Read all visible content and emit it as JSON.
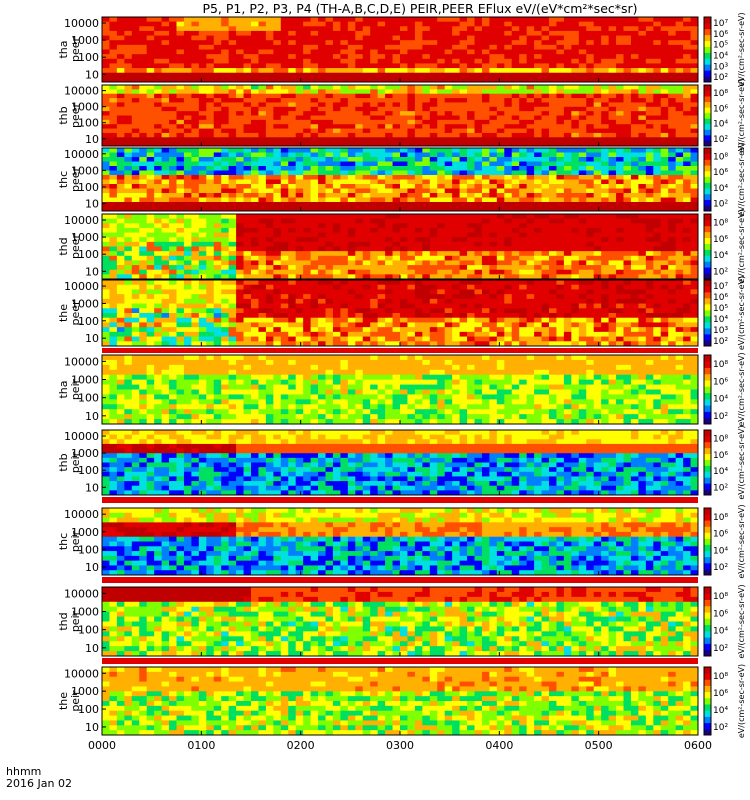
{
  "title": "P5, P1, P2, P3, P4 (TH-A,B,C,D,E) PEIR,PEER EFlux eV/(eV*cm²*sec*sr)",
  "colors": {
    "colormap": [
      "#1a0080",
      "#0000ff",
      "#0080ff",
      "#00e0e0",
      "#00e060",
      "#80ff00",
      "#ffff00",
      "#ffb000",
      "#ff5000",
      "#e00000",
      "#c00000"
    ],
    "frame": "#000000",
    "flag_red": "#e00000",
    "flag_white": "#ffffff",
    "flag_black": "#000000",
    "gap_dark": "#000080"
  },
  "chart_data": {
    "type": "heatmap",
    "title": "P5, P1, P2, P3, P4 (TH-A,B,C,D,E) PEIR,PEER EFlux eV/(eV*cm²*sec*sr)",
    "x_ticks": [
      "0000",
      "0100",
      "0200",
      "0300",
      "0400",
      "0500",
      "0600"
    ],
    "x_label_line1": "hhmm",
    "x_label_line2": "2016 Jan 02",
    "x_range_hhmm": [
      "0000",
      "0600"
    ],
    "y_scale": "log",
    "y_ticks": [
      "10",
      "100",
      "1000",
      "10000"
    ],
    "colorbar_scale": "log",
    "panels": [
      {
        "label1": "tha",
        "label2": "peer",
        "colorbar_ticks": [
          "10²",
          "10³",
          "10⁴",
          "10⁵",
          "10⁶",
          "10⁷"
        ],
        "colorbar_label": "eV/(cm²-sec-sr-eV)"
      },
      {
        "label1": "thb",
        "label2": "peer",
        "colorbar_ticks": [
          "10²",
          "10⁴",
          "10⁶",
          "10⁸"
        ],
        "colorbar_label": "eV/(cm²-sec-sr-eV)"
      },
      {
        "label1": "thc",
        "label2": "peer",
        "colorbar_ticks": [
          "10²",
          "10⁴",
          "10⁶",
          "10⁸"
        ],
        "colorbar_label": "eV/(cm²-sec-sr-eV)"
      },
      {
        "label1": "thd",
        "label2": "peer",
        "colorbar_ticks": [
          "10²",
          "10⁴",
          "10⁶",
          "10⁸"
        ],
        "colorbar_label": "eV/(cm²-sec-sr-eV)"
      },
      {
        "label1": "the",
        "label2": "peer",
        "colorbar_ticks": [
          "10²",
          "10³",
          "10⁴",
          "10⁵",
          "10⁶",
          "10⁷"
        ],
        "colorbar_label": "eV/(cm²-sec-sr-eV)"
      },
      {
        "label1": "tha",
        "label2": "peir",
        "colorbar_ticks": [
          "10²",
          "10⁴",
          "10⁶",
          "10⁸"
        ],
        "colorbar_label": "eV/(cm²-sec-sr-eV)"
      },
      {
        "label1": "thb",
        "label2": "peir",
        "colorbar_ticks": [
          "10²",
          "10⁴",
          "10⁶",
          "10⁸"
        ],
        "colorbar_label": "eV/(cm²-sec-sr-eV)"
      },
      {
        "label1": "thc",
        "label2": "peir",
        "colorbar_ticks": [
          "10²",
          "10⁴",
          "10⁶",
          "10⁸"
        ],
        "colorbar_label": "eV/(cm²-sec-sr-eV)"
      },
      {
        "label1": "thd",
        "label2": "peir",
        "colorbar_ticks": [
          "10²",
          "10⁴",
          "10⁶",
          "10⁸"
        ],
        "colorbar_label": "eV/(cm²-sec-sr-eV)"
      },
      {
        "label1": "the",
        "label2": "peir",
        "colorbar_ticks": [
          "10²",
          "10⁴",
          "10⁶",
          "10⁸"
        ],
        "colorbar_label": "eV/(cm²-sec-sr-eV)"
      }
    ]
  }
}
